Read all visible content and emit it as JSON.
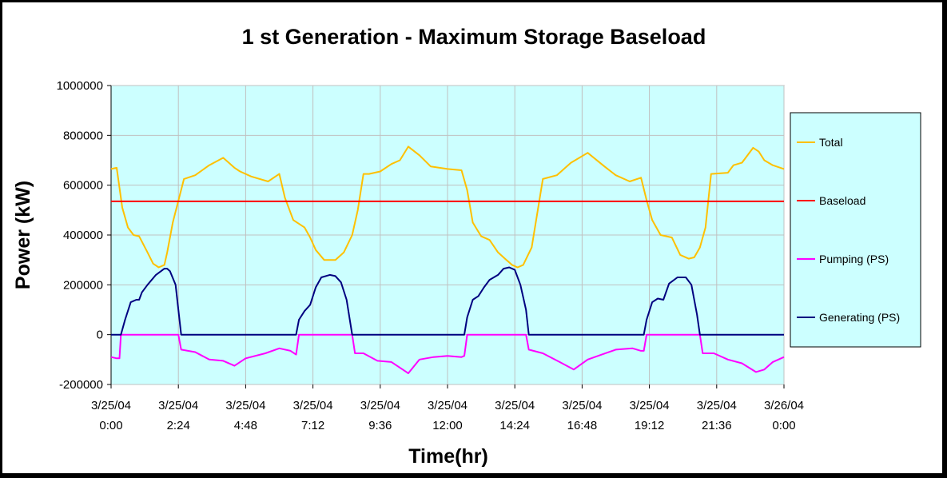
{
  "chart_data": {
    "type": "line",
    "title": "1 st Generation - Maximum Storage Baseload",
    "xlabel": "Time(hr)",
    "ylabel": "Power (kW)",
    "ylim": [
      -200000,
      1000000
    ],
    "xlim": [
      0,
      24
    ],
    "y_ticks": [
      -200000,
      0,
      200000,
      400000,
      600000,
      800000,
      1000000
    ],
    "y_tick_labels": [
      "-200000",
      "0",
      "200000",
      "400000",
      "600000",
      "800000",
      "1000000"
    ],
    "x_tick_labels": [
      [
        "3/25/04",
        "0:00"
      ],
      [
        "3/25/04",
        "2:24"
      ],
      [
        "3/25/04",
        "4:48"
      ],
      [
        "3/25/04",
        "7:12"
      ],
      [
        "3/25/04",
        "9:36"
      ],
      [
        "3/25/04",
        "12:00"
      ],
      [
        "3/25/04",
        "14:24"
      ],
      [
        "3/25/04",
        "16:48"
      ],
      [
        "3/25/04",
        "19:12"
      ],
      [
        "3/25/04",
        "21:36"
      ],
      [
        "3/26/04",
        "0:00"
      ]
    ],
    "grid": true,
    "legend_position": "right",
    "plot_background": "#ccffff",
    "series": [
      {
        "name": "Total",
        "color": "#ffc000",
        "x": [
          0,
          0.2,
          0.4,
          0.6,
          0.8,
          1.0,
          1.3,
          1.5,
          1.7,
          1.9,
          2.0,
          2.2,
          2.6,
          3.0,
          3.5,
          4.0,
          4.4,
          4.6,
          5.0,
          5.6,
          6.0,
          6.2,
          6.5,
          6.9,
          7.1,
          7.3,
          7.6,
          8.0,
          8.3,
          8.6,
          8.8,
          9.0,
          9.2,
          9.6,
          10.0,
          10.3,
          10.6,
          11.0,
          11.4,
          12.0,
          12.5,
          12.7,
          12.9,
          13.2,
          13.5,
          13.8,
          14.1,
          14.3,
          14.5,
          14.7,
          15.0,
          15.4,
          15.9,
          16.4,
          17.0,
          17.6,
          18.0,
          18.5,
          18.9,
          19.1,
          19.3,
          19.6,
          20.0,
          20.3,
          20.6,
          20.8,
          21.0,
          21.2,
          21.4,
          22.0,
          22.2,
          22.5,
          22.9,
          23.1,
          23.3,
          23.6,
          24.0
        ],
        "values": [
          665000,
          670000,
          510000,
          430000,
          400000,
          395000,
          330000,
          285000,
          270000,
          280000,
          330000,
          450000,
          625000,
          640000,
          680000,
          710000,
          670000,
          655000,
          635000,
          615000,
          645000,
          550000,
          460000,
          430000,
          390000,
          340000,
          300000,
          300000,
          330000,
          400000,
          500000,
          645000,
          645000,
          655000,
          685000,
          700000,
          755000,
          720000,
          675000,
          665000,
          660000,
          580000,
          450000,
          395000,
          380000,
          330000,
          300000,
          280000,
          270000,
          280000,
          350000,
          625000,
          640000,
          690000,
          730000,
          675000,
          640000,
          615000,
          630000,
          540000,
          460000,
          400000,
          390000,
          320000,
          305000,
          310000,
          350000,
          430000,
          645000,
          650000,
          680000,
          690000,
          750000,
          735000,
          700000,
          680000,
          665000
        ]
      },
      {
        "name": "Baseload",
        "color": "#ff0000",
        "x": [
          0,
          24
        ],
        "values": [
          535000,
          535000
        ]
      },
      {
        "name": "Pumping (PS)",
        "color": "#ff00ff",
        "x": [
          0,
          0.2,
          0.3,
          0.35,
          2.4,
          2.5,
          3.0,
          3.5,
          4.0,
          4.4,
          4.8,
          5.5,
          6.0,
          6.4,
          6.6,
          6.7,
          8.6,
          8.7,
          9.0,
          9.5,
          10.0,
          10.6,
          11.0,
          11.5,
          12.0,
          12.5,
          12.6,
          12.7,
          14.8,
          14.9,
          15.4,
          16.0,
          16.5,
          17.0,
          17.5,
          18.0,
          18.6,
          18.9,
          19.0,
          19.1,
          21.0,
          21.1,
          21.5,
          22.0,
          22.5,
          23.0,
          23.3,
          23.6,
          24.0
        ],
        "values": [
          -90000,
          -95000,
          -95000,
          0,
          0,
          -60000,
          -70000,
          -100000,
          -105000,
          -125000,
          -95000,
          -75000,
          -55000,
          -65000,
          -80000,
          0,
          0,
          -75000,
          -75000,
          -105000,
          -110000,
          -155000,
          -100000,
          -90000,
          -85000,
          -90000,
          -85000,
          0,
          0,
          -60000,
          -75000,
          -110000,
          -140000,
          -100000,
          -80000,
          -60000,
          -55000,
          -65000,
          -65000,
          0,
          0,
          -75000,
          -75000,
          -100000,
          -115000,
          -150000,
          -140000,
          -110000,
          -90000
        ]
      },
      {
        "name": "Generating (PS)",
        "color": "#000080",
        "x": [
          0,
          0.35,
          0.5,
          0.7,
          0.9,
          1.0,
          1.1,
          1.3,
          1.6,
          1.9,
          2.0,
          2.1,
          2.3,
          2.5,
          6.6,
          6.7,
          6.9,
          7.1,
          7.3,
          7.5,
          7.8,
          8.0,
          8.2,
          8.4,
          8.6,
          12.6,
          12.7,
          12.9,
          13.1,
          13.3,
          13.5,
          13.8,
          14.0,
          14.2,
          14.4,
          14.6,
          14.8,
          14.9,
          19.0,
          19.1,
          19.3,
          19.5,
          19.7,
          19.9,
          20.2,
          20.5,
          20.7,
          20.9,
          21.0,
          24.0
        ],
        "values": [
          0,
          0,
          60000,
          130000,
          140000,
          140000,
          170000,
          200000,
          240000,
          265000,
          265000,
          255000,
          200000,
          0,
          0,
          60000,
          95000,
          120000,
          190000,
          230000,
          240000,
          235000,
          210000,
          140000,
          0,
          0,
          70000,
          140000,
          155000,
          190000,
          220000,
          240000,
          265000,
          270000,
          260000,
          200000,
          100000,
          0,
          0,
          60000,
          130000,
          145000,
          140000,
          205000,
          230000,
          230000,
          200000,
          80000,
          0,
          0
        ]
      }
    ]
  }
}
